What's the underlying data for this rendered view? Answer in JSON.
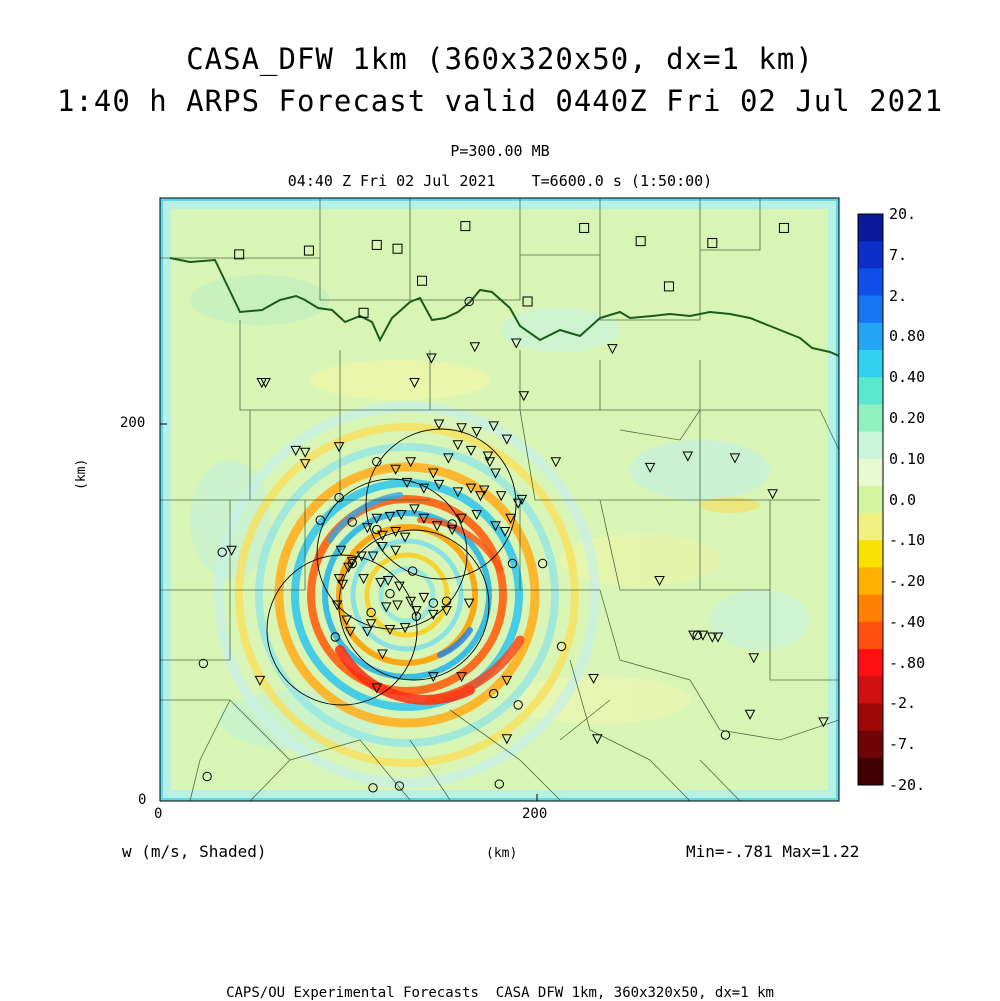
{
  "title": {
    "line1": "CASA_DFW 1km (360x320x50, dx=1 km)",
    "line2": "1:40 h ARPS Forecast valid 0440Z Fri 02 Jul 2021"
  },
  "pressure_level": "P=300.00 MB",
  "time_line": "04:40 Z Fri 02 Jul 2021    T=6600.0 s (1:50:00)",
  "axes": {
    "x_ticks": [
      "0",
      "200"
    ],
    "y_ticks": [
      "0",
      "200"
    ],
    "x_unit": "(km)",
    "y_unit": "(km)"
  },
  "variable_label": "w (m/s, Shaded)",
  "min_max": "Min=-.781 Max=1.22",
  "footer": "CAPS/OU Experimental Forecasts  CASA DFW 1km, 360x320x50, dx=1 km",
  "colorbar": {
    "labels": [
      "20.",
      "7.",
      "2.",
      "0.80",
      "0.40",
      "0.20",
      "0.10",
      "0.0",
      "-.10",
      "-.20",
      "-.40",
      "-.80",
      "-2.",
      "-7.",
      "-20."
    ],
    "colors": [
      "#0a1a9a",
      "#0d2fc8",
      "#1050e8",
      "#1875f2",
      "#22a5f5",
      "#2fd0ee",
      "#58e8d0",
      "#8ff0c0",
      "#c8f5d8",
      "#e8f8d0",
      "#d2f5a0",
      "#f0f080",
      "#f8e000",
      "#ffb000",
      "#ff8000",
      "#ff5010",
      "#ff1010",
      "#d01010",
      "#a00808",
      "#700404",
      "#400000"
    ]
  },
  "chart_data": {
    "type": "map",
    "x_range_km": [
      0,
      360
    ],
    "y_range_km": [
      0,
      320
    ],
    "field": "vertical velocity w (m/s)",
    "field_min": -0.781,
    "field_max": 1.22,
    "radar_range_rings_km": [
      {
        "cx": 148,
        "cy": 174,
        "r": 40
      },
      {
        "cx": 112,
        "cy": 140,
        "r": 40
      },
      {
        "cx": 138,
        "cy": 124,
        "r": 40
      },
      {
        "cx": 78,
        "cy": 96,
        "r": 40
      }
    ],
    "wave_center_km": [
      130,
      108
    ],
    "triangles_km": [
      [
        54,
        222
      ],
      [
        56,
        222
      ],
      [
        95,
        188
      ],
      [
        72,
        186
      ],
      [
        144,
        235
      ],
      [
        135,
        222
      ],
      [
        167,
        241
      ],
      [
        189,
        243
      ],
      [
        240,
        240
      ],
      [
        193,
        215
      ],
      [
        77,
        185
      ],
      [
        77,
        179
      ],
      [
        148,
        200
      ],
      [
        160,
        198
      ],
      [
        158,
        189
      ],
      [
        168,
        196
      ],
      [
        177,
        199
      ],
      [
        184,
        192
      ],
      [
        174,
        183
      ],
      [
        165,
        186
      ],
      [
        175,
        180
      ],
      [
        178,
        174
      ],
      [
        153,
        182
      ],
      [
        145,
        174
      ],
      [
        133,
        180
      ],
      [
        125,
        176
      ],
      [
        131,
        169
      ],
      [
        140,
        166
      ],
      [
        148,
        168
      ],
      [
        158,
        164
      ],
      [
        165,
        166
      ],
      [
        172,
        165
      ],
      [
        170,
        162
      ],
      [
        181,
        162
      ],
      [
        190,
        158
      ],
      [
        192,
        160
      ],
      [
        186,
        150
      ],
      [
        183,
        143
      ],
      [
        178,
        146
      ],
      [
        168,
        152
      ],
      [
        160,
        150
      ],
      [
        155,
        144
      ],
      [
        147,
        146
      ],
      [
        140,
        150
      ],
      [
        135,
        155
      ],
      [
        128,
        152
      ],
      [
        122,
        151
      ],
      [
        115,
        150
      ],
      [
        110,
        145
      ],
      [
        118,
        141
      ],
      [
        125,
        143
      ],
      [
        130,
        140
      ],
      [
        125,
        133
      ],
      [
        118,
        135
      ],
      [
        113,
        130
      ],
      [
        102,
        127
      ],
      [
        107,
        130
      ],
      [
        100,
        124
      ],
      [
        96,
        133
      ],
      [
        95,
        118
      ],
      [
        97,
        115
      ],
      [
        108,
        118
      ],
      [
        117,
        116
      ],
      [
        121,
        117
      ],
      [
        127,
        114
      ],
      [
        133,
        106
      ],
      [
        126,
        104
      ],
      [
        120,
        103
      ],
      [
        140,
        108
      ],
      [
        136,
        101
      ],
      [
        145,
        99
      ],
      [
        152,
        101
      ],
      [
        164,
        105
      ],
      [
        130,
        92
      ],
      [
        122,
        91
      ],
      [
        112,
        94
      ],
      [
        110,
        90
      ],
      [
        101,
        90
      ],
      [
        99,
        96
      ],
      [
        94,
        104
      ],
      [
        118,
        78
      ],
      [
        145,
        66
      ],
      [
        160,
        66
      ],
      [
        184,
        64
      ],
      [
        184,
        33
      ],
      [
        230,
        65
      ],
      [
        232,
        33
      ],
      [
        265,
        117
      ],
      [
        283,
        88
      ],
      [
        288,
        88
      ],
      [
        293,
        87
      ],
      [
        296,
        87
      ],
      [
        315,
        76
      ],
      [
        313,
        46
      ],
      [
        352,
        42
      ],
      [
        325,
        163
      ],
      [
        305,
        182
      ],
      [
        280,
        183
      ],
      [
        260,
        177
      ],
      [
        210,
        180
      ],
      [
        38,
        133
      ],
      [
        53,
        64
      ],
      [
        115,
        60
      ]
    ],
    "circles_km": [
      [
        164,
        265
      ],
      [
        115,
        180
      ],
      [
        95,
        161
      ],
      [
        85,
        149
      ],
      [
        102,
        148
      ],
      [
        115,
        144
      ],
      [
        155,
        147
      ],
      [
        134,
        122
      ],
      [
        122,
        110
      ],
      [
        112,
        100
      ],
      [
        145,
        105
      ],
      [
        136,
        98
      ],
      [
        152,
        106
      ],
      [
        93,
        87
      ],
      [
        187,
        126
      ],
      [
        203,
        126
      ],
      [
        213,
        82
      ],
      [
        177,
        57
      ],
      [
        190,
        51
      ],
      [
        285,
        88
      ],
      [
        300,
        35
      ],
      [
        33,
        132
      ],
      [
        23,
        73
      ],
      [
        25,
        13
      ],
      [
        113,
        7
      ],
      [
        127,
        8
      ],
      [
        180,
        9
      ],
      [
        102,
        126
      ]
    ],
    "squares_km": [
      [
        162,
        305
      ],
      [
        225,
        304
      ],
      [
        255,
        297
      ],
      [
        293,
        296
      ],
      [
        331,
        304
      ],
      [
        42,
        290
      ],
      [
        79,
        292
      ],
      [
        115,
        295
      ],
      [
        126,
        293
      ],
      [
        139,
        276
      ],
      [
        195,
        265
      ],
      [
        108,
        259
      ],
      [
        270,
        273
      ]
    ]
  }
}
